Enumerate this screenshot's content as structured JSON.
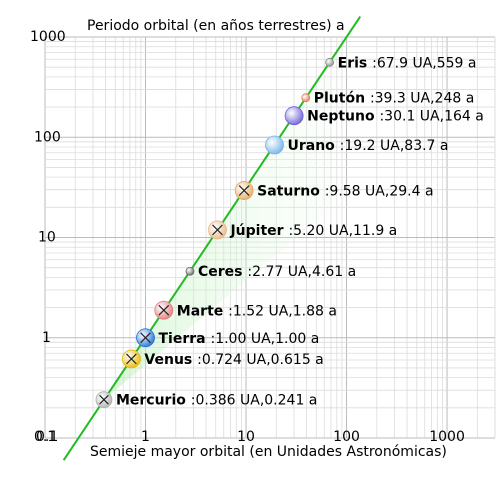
{
  "chart_data": {
    "type": "scatter",
    "title": "Periodo orbital (en años terrestres) a",
    "xlabel": "Semieje mayor orbital (en Unidades Astronómicas)",
    "ylabel": "",
    "xscale": "log",
    "yscale": "log",
    "xlim": [
      0.1,
      3000
    ],
    "ylim": [
      0.1,
      1000
    ],
    "x_ticks": [
      {
        "value": 0.1,
        "label": "0.1"
      },
      {
        "value": 1,
        "label": "1"
      },
      {
        "value": 10,
        "label": "10"
      },
      {
        "value": 100,
        "label": "100"
      },
      {
        "value": 1000,
        "label": "1000"
      }
    ],
    "y_ticks": [
      {
        "value": 0.1,
        "label": "0.1"
      },
      {
        "value": 1,
        "label": "1"
      },
      {
        "value": 10,
        "label": "10"
      },
      {
        "value": 100,
        "label": "100"
      },
      {
        "value": 1000,
        "label": "1000"
      }
    ],
    "grid": true,
    "trend_line_color": "#22bb22",
    "points": [
      {
        "name": "Mercurio",
        "a": 0.386,
        "period": 0.241,
        "label": ":0.386 UA,0.241 a",
        "color": "#b0b0b0",
        "radius": 8,
        "cross": true
      },
      {
        "name": "Venus",
        "a": 0.724,
        "period": 0.615,
        "label": ":0.724 UA,0.615 a",
        "color": "#e8b800",
        "radius": 9,
        "cross": true
      },
      {
        "name": "Tierra",
        "a": 1.0,
        "period": 1.0,
        "label": ":1.00 UA,1.00 a",
        "color": "#1f6fd6",
        "radius": 9,
        "cross": true
      },
      {
        "name": "Marte",
        "a": 1.52,
        "period": 1.88,
        "label": ":1.52 UA,1.88 a",
        "color": "#e07a7a",
        "radius": 9,
        "cross": true
      },
      {
        "name": "Ceres",
        "a": 2.77,
        "period": 4.61,
        "label": ":2.77 UA,4.61 a",
        "color": "#666666",
        "radius": 4,
        "cross": false
      },
      {
        "name": "Júpiter",
        "a": 5.2,
        "period": 11.9,
        "label": ":5.20 UA,11.9 a",
        "color": "#e8b88a",
        "radius": 9,
        "cross": true
      },
      {
        "name": "Saturno",
        "a": 9.58,
        "period": 29.4,
        "label": ":9.58 UA,29.4 a",
        "color": "#e6a860",
        "radius": 9,
        "cross": true
      },
      {
        "name": "Urano",
        "a": 19.2,
        "period": 83.7,
        "label": ":19.2 UA,83.7 a",
        "color": "#6fb2e8",
        "radius": 9,
        "cross": false
      },
      {
        "name": "Neptuno",
        "a": 30.1,
        "period": 164,
        "label": ":30.1 UA,164 a",
        "color": "#6a5fd6",
        "radius": 9,
        "cross": false
      },
      {
        "name": "Plutón",
        "a": 39.3,
        "period": 248,
        "label": ":39.3 UA,248 a",
        "color": "#e87a50",
        "radius": 4,
        "cross": false
      },
      {
        "name": "Eris",
        "a": 67.9,
        "period": 559,
        "label": ":67.9 UA,559 a",
        "color": "#888888",
        "radius": 4,
        "cross": false
      }
    ]
  }
}
